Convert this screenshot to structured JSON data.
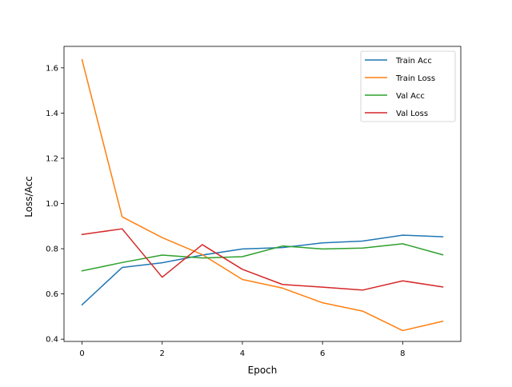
{
  "chart_data": {
    "type": "line",
    "title": "",
    "xlabel": "Epoch",
    "ylabel": "Loss/Acc",
    "x": [
      0,
      1,
      2,
      3,
      4,
      5,
      6,
      7,
      8,
      9
    ],
    "xlim": [
      -0.45,
      9.45
    ],
    "ylim": [
      0.39,
      1.695
    ],
    "xticks": [
      0,
      2,
      4,
      6,
      8
    ],
    "xtick_labels": [
      "0",
      "2",
      "4",
      "6",
      "8"
    ],
    "yticks": [
      0.4,
      0.6,
      0.8,
      1.0,
      1.2,
      1.4,
      1.6
    ],
    "ytick_labels": [
      "0.4",
      "0.6",
      "0.8",
      "1.0",
      "1.2",
      "1.4",
      "1.6"
    ],
    "grid": false,
    "legend_position": "top-right",
    "series": [
      {
        "name": "Train Acc",
        "color": "#1f77b4",
        "values": [
          0.552,
          0.717,
          0.738,
          0.772,
          0.799,
          0.805,
          0.826,
          0.834,
          0.86,
          0.853
        ]
      },
      {
        "name": "Train Loss",
        "color": "#ff7f0e",
        "values": [
          1.636,
          0.941,
          0.849,
          0.774,
          0.664,
          0.626,
          0.561,
          0.524,
          0.438,
          0.479
        ]
      },
      {
        "name": "Val Acc",
        "color": "#2ca02c",
        "values": [
          0.702,
          0.739,
          0.772,
          0.759,
          0.765,
          0.812,
          0.799,
          0.803,
          0.822,
          0.773
        ]
      },
      {
        "name": "Val Loss",
        "color": "#d62728",
        "values": [
          0.863,
          0.888,
          0.674,
          0.818,
          0.709,
          0.642,
          0.63,
          0.617,
          0.658,
          0.631
        ]
      }
    ]
  }
}
